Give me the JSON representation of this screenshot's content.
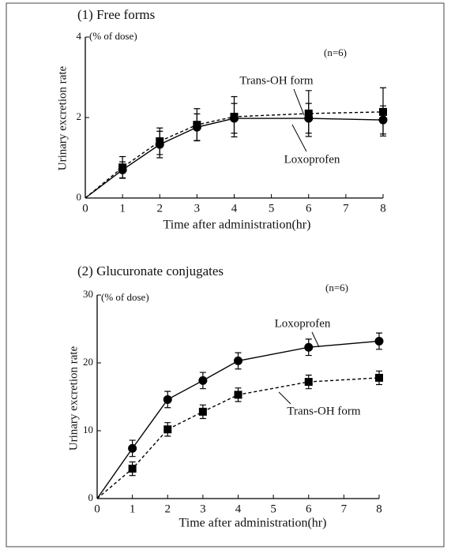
{
  "chart_data": [
    {
      "type": "line",
      "title": "(1) Free forms",
      "y_label": "Urinary excretion rate",
      "y_unit": "(% of dose)",
      "x_label": "Time after administration(hr)",
      "annotation": "(n=6)",
      "x": [
        0,
        1,
        2,
        3,
        4,
        6,
        8
      ],
      "xlim": [
        0,
        8
      ],
      "xticks": [
        0,
        1,
        2,
        3,
        4,
        5,
        6,
        7,
        8
      ],
      "ylim": [
        0,
        4
      ],
      "yticks": [
        0,
        2,
        4
      ],
      "series": [
        {
          "name": "Trans-OH form",
          "color": "#000000",
          "marker": "square",
          "line_style": "dashed",
          "values": [
            0,
            0.76,
            1.41,
            1.82,
            2.02,
            2.1,
            2.14
          ],
          "errors": [
            null,
            0.27,
            0.33,
            0.4,
            0.5,
            0.57,
            0.6
          ]
        },
        {
          "name": "Loxoprofen",
          "color": "#000000",
          "marker": "circle",
          "line_style": "solid",
          "values": [
            0,
            0.7,
            1.33,
            1.76,
            1.98,
            1.98,
            1.94
          ],
          "errors": [
            null,
            0.2,
            0.33,
            0.33,
            0.37,
            0.37,
            0.35
          ]
        }
      ]
    },
    {
      "type": "line",
      "title": "(2) Glucuronate conjugates",
      "y_label": "Urinary excretion rate",
      "y_unit": "(% of dose)",
      "x_label": "Time after administration(hr)",
      "annotation": "(n=6)",
      "x": [
        0,
        1,
        2,
        3,
        4,
        6,
        8
      ],
      "xlim": [
        0,
        8
      ],
      "xticks": [
        0,
        1,
        2,
        3,
        4,
        5,
        6,
        7,
        8
      ],
      "ylim": [
        0,
        30
      ],
      "yticks": [
        0,
        10,
        20,
        30
      ],
      "series": [
        {
          "name": "Loxoprofen",
          "color": "#000000",
          "marker": "circle",
          "line_style": "solid",
          "values": [
            0,
            7.4,
            14.6,
            17.4,
            20.3,
            22.3,
            23.2
          ],
          "errors": [
            null,
            1.2,
            1.2,
            1.2,
            1.2,
            1.2,
            1.2
          ]
        },
        {
          "name": "Trans-OH form",
          "color": "#000000",
          "marker": "square",
          "line_style": "dashed",
          "values": [
            0,
            4.4,
            10.2,
            12.8,
            15.3,
            17.2,
            17.8
          ],
          "errors": [
            null,
            1.0,
            1.0,
            1.0,
            1.0,
            1.0,
            1.0
          ]
        }
      ]
    }
  ]
}
